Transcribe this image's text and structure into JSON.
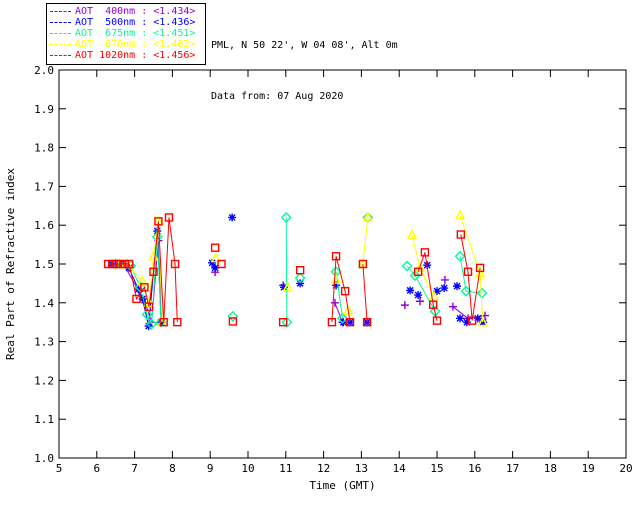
{
  "header": {
    "site_line": "PML, N 50 22', W 04 08', Alt 0m",
    "date_line": "Data from: 07 Aug 2020"
  },
  "legend": {
    "entries": [
      {
        "label": "AOT  400nm : <1.434>",
        "color": "#9400d3"
      },
      {
        "label": "AOT  500nm : <1.436>",
        "color": "#0000ff"
      },
      {
        "label": "AOT  675nm : <1.451>",
        "color": "#00fa9a"
      },
      {
        "label": "AOT  870nm : <1.462>",
        "color": "#ffff00"
      },
      {
        "label": "AOT 1020nm : <1.456>",
        "color": "#ff0000"
      }
    ]
  },
  "chart_data": {
    "type": "line",
    "title": "",
    "xlabel": "Time (GMT)",
    "ylabel": "Real Part of Refractive index",
    "xlim": [
      5,
      20
    ],
    "ylim": [
      1.0,
      2.0
    ],
    "xticks": [
      5,
      6,
      7,
      8,
      9,
      10,
      11,
      12,
      13,
      14,
      15,
      16,
      17,
      18,
      19,
      20
    ],
    "yticks": [
      1.0,
      1.1,
      1.2,
      1.3,
      1.4,
      1.5,
      1.6,
      1.7,
      1.8,
      1.9,
      2.0
    ],
    "grid": false,
    "legend_position": "top-left-outside",
    "series": [
      {
        "name": "AOT 400nm",
        "mean": "<1.434>",
        "color": "#9400d3",
        "marker": "plus",
        "segments": [
          [
            [
              6.45,
              1.5
            ],
            [
              6.7,
              1.5
            ],
            [
              7.12,
              1.43
            ],
            [
              7.28,
              1.4
            ],
            [
              7.45,
              1.35
            ],
            [
              7.63,
              1.56
            ],
            [
              7.72,
              1.35
            ]
          ],
          [
            [
              12.3,
              1.4
            ],
            [
              12.5,
              1.35
            ]
          ],
          [
            [
              15.42,
              1.39
            ],
            [
              15.82,
              1.36
            ],
            [
              16.27,
              1.367
            ]
          ]
        ],
        "points": [
          [
            9.13,
            1.479
          ],
          [
            10.93,
            1.445
          ],
          [
            14.15,
            1.394
          ],
          [
            14.55,
            1.404
          ],
          [
            15.21,
            1.459
          ]
        ]
      },
      {
        "name": "AOT 500nm",
        "mean": "<1.436>",
        "color": "#0000ff",
        "marker": "asterisk",
        "segments": [
          [
            [
              6.4,
              1.5
            ],
            [
              6.6,
              1.5
            ],
            [
              6.85,
              1.49
            ],
            [
              7.1,
              1.435
            ],
            [
              7.21,
              1.41
            ],
            [
              7.37,
              1.34
            ],
            [
              7.6,
              1.585
            ],
            [
              7.7,
              1.35
            ]
          ]
        ],
        "points": [
          [
            9.05,
            1.503
          ],
          [
            9.13,
            1.49
          ],
          [
            9.58,
            1.62
          ],
          [
            10.95,
            1.44
          ],
          [
            11.38,
            1.45
          ],
          [
            12.33,
            1.445
          ],
          [
            12.52,
            1.35
          ],
          [
            12.7,
            1.35
          ],
          [
            13.15,
            1.35
          ],
          [
            14.29,
            1.432
          ],
          [
            14.5,
            1.42
          ],
          [
            14.74,
            1.497
          ],
          [
            15.0,
            1.43
          ],
          [
            15.19,
            1.438
          ],
          [
            15.53,
            1.443
          ],
          [
            15.61,
            1.36
          ],
          [
            15.79,
            1.35
          ],
          [
            16.08,
            1.36
          ],
          [
            16.22,
            1.35
          ]
        ]
      },
      {
        "name": "AOT 675nm",
        "mean": "<1.451>",
        "color": "#00fa9a",
        "marker": "diamond",
        "segments": [
          [
            [
              6.5,
              1.5
            ],
            [
              6.9,
              1.495
            ],
            [
              7.15,
              1.44
            ],
            [
              7.33,
              1.37
            ],
            [
              7.45,
              1.345
            ],
            [
              7.6,
              1.57
            ],
            [
              7.7,
              1.35
            ]
          ],
          [
            [
              11.01,
              1.62
            ],
            [
              11.03,
              1.35
            ]
          ],
          [
            [
              12.33,
              1.48
            ],
            [
              12.5,
              1.36
            ]
          ],
          [
            [
              14.21,
              1.495
            ],
            [
              14.42,
              1.47
            ],
            [
              14.95,
              1.378
            ]
          ],
          [
            [
              15.61,
              1.52
            ],
            [
              15.77,
              1.43
            ],
            [
              16.19,
              1.425
            ]
          ]
        ],
        "points": [
          [
            9.6,
            1.365
          ],
          [
            11.38,
            1.464
          ],
          [
            13.17,
            1.62
          ]
        ]
      },
      {
        "name": "AOT 870nm",
        "mean": "<1.462>",
        "color": "#ffff00",
        "marker": "triangle",
        "segments": [
          [
            [
              6.6,
              1.5
            ],
            [
              6.8,
              1.5
            ],
            [
              7.2,
              1.455
            ],
            [
              7.38,
              1.4
            ],
            [
              7.5,
              1.52
            ],
            [
              7.63,
              1.61
            ],
            [
              7.73,
              1.35
            ]
          ],
          [
            [
              13.04,
              1.5
            ],
            [
              13.17,
              1.62
            ]
          ],
          [
            [
              14.34,
              1.575
            ],
            [
              14.55,
              1.49
            ],
            [
              14.92,
              1.417
            ]
          ],
          [
            [
              15.61,
              1.625
            ],
            [
              16.14,
              1.477
            ],
            [
              16.21,
              1.35
            ]
          ]
        ],
        "points": [
          [
            9.15,
            1.515
          ],
          [
            11.05,
            1.44
          ],
          [
            12.33,
            1.46
          ],
          [
            12.65,
            1.38
          ]
        ]
      },
      {
        "name": "AOT 1020nm",
        "mean": "<1.456>",
        "color": "#ff0000",
        "marker": "square",
        "segments": [
          [
            [
              6.3,
              1.5
            ],
            [
              6.41,
              1.5
            ],
            [
              6.52,
              1.5
            ],
            [
              6.63,
              1.5
            ],
            [
              6.74,
              1.5
            ],
            [
              6.86,
              1.5
            ],
            [
              7.05,
              1.41
            ],
            [
              7.26,
              1.44
            ],
            [
              7.38,
              1.39
            ],
            [
              7.5,
              1.48
            ],
            [
              7.63,
              1.61
            ],
            [
              7.77,
              1.35
            ],
            [
              7.91,
              1.62
            ],
            [
              8.07,
              1.5
            ],
            [
              8.13,
              1.35
            ]
          ],
          [
            [
              12.22,
              1.35
            ],
            [
              12.33,
              1.52
            ],
            [
              12.57,
              1.43
            ],
            [
              12.7,
              1.35
            ]
          ],
          [
            [
              13.04,
              1.5
            ],
            [
              13.15,
              1.35
            ]
          ],
          [
            [
              14.5,
              1.48
            ],
            [
              14.68,
              1.53
            ],
            [
              14.9,
              1.395
            ],
            [
              15.0,
              1.354
            ]
          ],
          [
            [
              15.63,
              1.576
            ],
            [
              15.82,
              1.48
            ],
            [
              15.93,
              1.354
            ],
            [
              16.14,
              1.49
            ]
          ]
        ],
        "points": [
          [
            9.13,
            1.542
          ],
          [
            9.3,
            1.5
          ],
          [
            9.6,
            1.352
          ],
          [
            10.93,
            1.35
          ],
          [
            11.38,
            1.484
          ]
        ]
      }
    ]
  }
}
